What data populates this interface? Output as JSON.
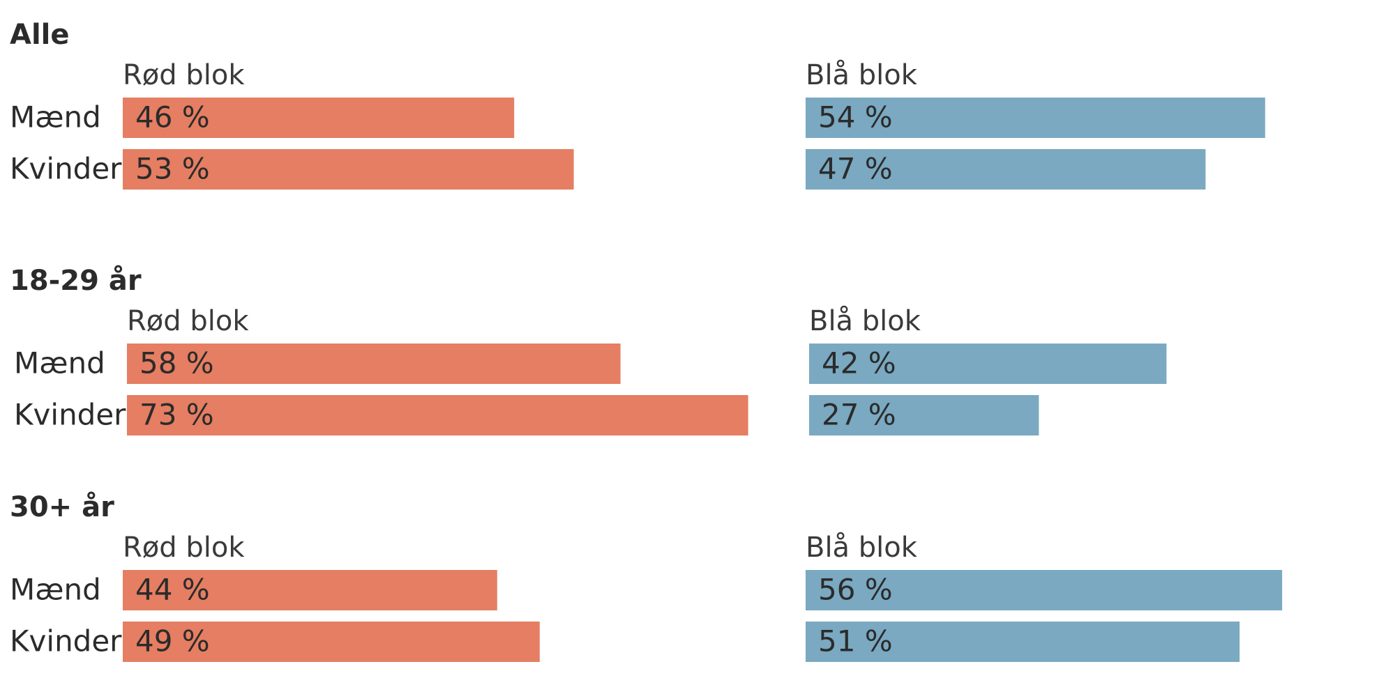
{
  "chart_data": {
    "type": "bar",
    "orientation": "horizontal",
    "colors": {
      "red_block": "#e57e62",
      "blue_block": "#7aa9c1",
      "text": "#2b2b2b"
    },
    "unit_suffix": " %",
    "groups": [
      {
        "title": "Alle",
        "blocks": [
          "Rød blok",
          "Blå blok"
        ],
        "rows": [
          {
            "label": "Mænd",
            "red": 46,
            "blue": 54
          },
          {
            "label": "Kvinder",
            "red": 53,
            "blue": 47
          }
        ]
      },
      {
        "title": "18-29 år",
        "blocks": [
          "Rød blok",
          "Blå blok"
        ],
        "rows": [
          {
            "label": "Mænd",
            "red": 58,
            "blue": 42
          },
          {
            "label": "Kvinder",
            "red": 73,
            "blue": 27
          }
        ]
      },
      {
        "title": "30+ år",
        "blocks": [
          "Rød blok",
          "Blå blok"
        ],
        "rows": [
          {
            "label": "Mænd",
            "red": 44,
            "blue": 56
          },
          {
            "label": "Kvinder",
            "red": 49,
            "blue": 51
          }
        ]
      }
    ]
  }
}
